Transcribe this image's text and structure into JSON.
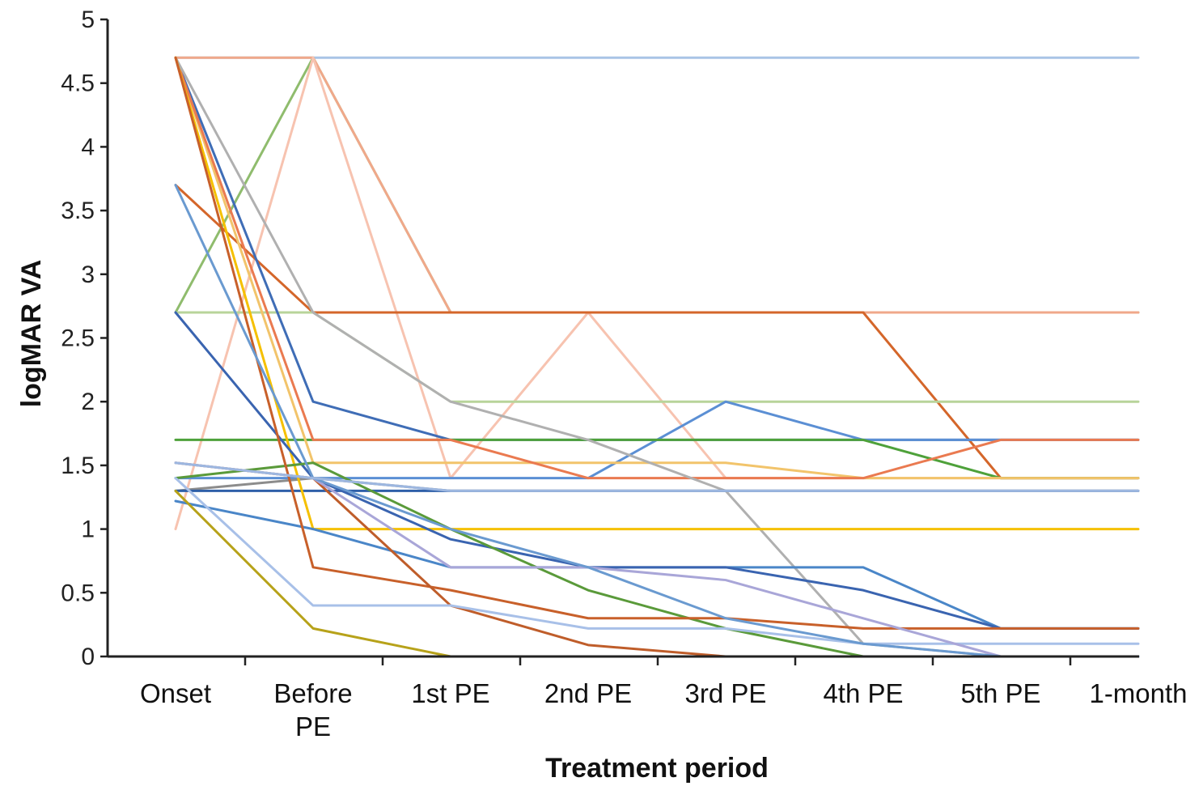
{
  "chart_data": {
    "type": "line",
    "title": "",
    "xlabel": "Treatment period",
    "ylabel": "logMAR  VA",
    "categories": [
      "Onset",
      "Before\nPE",
      "1st PE",
      "2nd PE",
      "3rd PE",
      "4th PE",
      "5th PE",
      "1-month"
    ],
    "ylim": [
      0,
      5
    ],
    "yticks": [
      0,
      0.5,
      1,
      1.5,
      2,
      2.5,
      3,
      3.5,
      4,
      4.5,
      5
    ],
    "ytick_labels": [
      "0",
      "0.5",
      "1",
      "1.5",
      "2",
      "2.5",
      "3",
      "3.5",
      "4",
      "4.5",
      "5"
    ],
    "grid": false,
    "legend": "none",
    "series": [
      {
        "color": "#a9c4e6",
        "values": [
          4.7,
          4.7,
          4.7,
          4.7,
          4.7,
          4.7,
          4.7,
          4.7
        ]
      },
      {
        "color": "#8fbc6d",
        "values": [
          2.7,
          4.7,
          2.7,
          2.7,
          2.7,
          2.7,
          2.7,
          2.7
        ]
      },
      {
        "color": "#f0a88a",
        "values": [
          4.7,
          4.7,
          2.7,
          2.7,
          2.7,
          2.7,
          2.7,
          2.7
        ]
      },
      {
        "color": "#f7c3b0",
        "values": [
          1.0,
          4.7,
          1.4,
          2.7,
          1.4,
          1.4,
          1.4,
          1.4
        ]
      },
      {
        "color": "#d4662a",
        "values": [
          3.7,
          2.7,
          2.7,
          2.7,
          2.7,
          2.7,
          1.4,
          1.4
        ]
      },
      {
        "color": "#b8d49a",
        "values": [
          2.7,
          2.7,
          2.0,
          2.0,
          2.0,
          2.0,
          2.0,
          2.0
        ]
      },
      {
        "color": "#3f6db6",
        "values": [
          4.7,
          2.0,
          1.7,
          1.7,
          1.7,
          1.7,
          1.7,
          1.7
        ]
      },
      {
        "color": "#5b8fd4",
        "values": [
          1.4,
          1.4,
          1.4,
          1.4,
          2.0,
          1.7,
          1.7,
          1.7
        ]
      },
      {
        "color": "#4ea13a",
        "values": [
          1.7,
          1.7,
          1.7,
          1.7,
          1.7,
          1.7,
          1.4,
          1.4
        ]
      },
      {
        "color": "#f2c46b",
        "values": [
          4.7,
          1.52,
          1.52,
          1.52,
          1.52,
          1.4,
          1.4,
          1.4
        ]
      },
      {
        "color": "#ea7a50",
        "values": [
          4.7,
          1.7,
          1.7,
          1.4,
          1.4,
          1.4,
          1.7,
          1.7
        ]
      },
      {
        "color": "#b0b0b0",
        "values": [
          4.7,
          2.7,
          2.0,
          1.7,
          1.3,
          0.1,
          0.0,
          0.0
        ]
      },
      {
        "color": "#8c8c8c",
        "values": [
          1.3,
          1.4,
          1.3,
          1.3,
          1.3,
          1.3,
          1.3,
          1.3
        ]
      },
      {
        "color": "#2e5fa8",
        "values": [
          1.3,
          1.3,
          1.3,
          1.3,
          1.3,
          1.3,
          1.3,
          1.3
        ]
      },
      {
        "color": "#f5c000",
        "values": [
          4.7,
          1.0,
          1.0,
          1.0,
          1.0,
          1.0,
          1.0,
          1.0
        ]
      },
      {
        "color": "#4a86c8",
        "values": [
          1.22,
          1.0,
          0.7,
          0.7,
          0.7,
          0.7,
          0.22,
          0.22
        ]
      },
      {
        "color": "#3a64b0",
        "values": [
          2.7,
          1.4,
          0.92,
          0.7,
          0.7,
          0.52,
          0.22,
          0.22
        ]
      },
      {
        "color": "#5a9a3a",
        "values": [
          1.4,
          1.52,
          1.0,
          0.52,
          0.22,
          0.0,
          0.0,
          0.0
        ]
      },
      {
        "color": "#c8602a",
        "values": [
          4.7,
          0.7,
          0.52,
          0.3,
          0.3,
          0.22,
          0.22,
          0.22
        ]
      },
      {
        "color": "#bf5d2a",
        "values": [
          1.52,
          1.4,
          0.4,
          0.09,
          0.0,
          0.0,
          0.0,
          0.0
        ]
      },
      {
        "color": "#b7a21a",
        "values": [
          1.3,
          0.22,
          0.0,
          0.0,
          0.0,
          0.0,
          0.0,
          0.0
        ]
      },
      {
        "color": "#a8c0e8",
        "values": [
          1.4,
          0.4,
          0.4,
          0.22,
          0.22,
          0.1,
          0.1,
          0.1
        ]
      },
      {
        "color": "#a9a6d8",
        "values": [
          1.52,
          1.4,
          0.7,
          0.7,
          0.6,
          0.3,
          0.0,
          0.0
        ]
      },
      {
        "color": "#6a9ad0",
        "values": [
          3.7,
          1.4,
          1.0,
          0.7,
          0.3,
          0.1,
          0.0,
          0.0
        ]
      },
      {
        "color": "#9db7e0",
        "values": [
          1.52,
          1.4,
          1.3,
          1.3,
          1.3,
          1.3,
          1.3,
          1.3
        ]
      }
    ]
  }
}
